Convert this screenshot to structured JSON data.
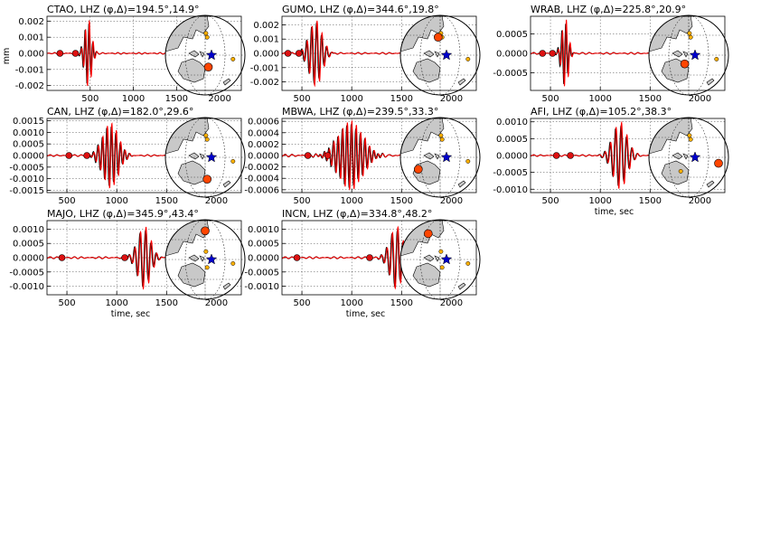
{
  "figure": {
    "ylabel_units": "mm",
    "xlabel": "time, sec",
    "colors": {
      "observed": "#000000",
      "synthetic": "#ff0000",
      "event": "#0000cc",
      "land": "#c8c8c8",
      "marker": "#ff4500",
      "marker_small": "#ffb000"
    }
  },
  "chart_data": [
    {
      "type": "line",
      "station": "CTAO",
      "title": "CTAO, LHZ",
      "geom": "(φ,Δ)=194.5°,14.9°",
      "xlim": [
        0,
        2250
      ],
      "ylim": [
        -0.0023,
        0.0023
      ],
      "xticks": [
        "500",
        "1000",
        "1500",
        "2000"
      ],
      "yticks": [
        "0.002",
        "0.001",
        "0.000",
        "-0.001",
        "-0.002"
      ],
      "wave": {
        "t0": 480,
        "amp": 0.0021,
        "period": 45,
        "width": 55,
        "pre": 4e-05
      },
      "picks": [
        150,
        330
      ],
      "globe": {
        "big": [
          {
            "x": 0.08,
            "y": 0.3
          }
        ],
        "small": [
          {
            "x": 0.02,
            "y": -0.55
          },
          {
            "x": 0.05,
            "y": -0.45
          },
          {
            "x": 0.7,
            "y": 0.1
          }
        ]
      }
    },
    {
      "type": "line",
      "station": "GUMO",
      "title": "GUMO, LHZ",
      "geom": "(φ,Δ)=344.6°,19.8°",
      "xlim": [
        300,
        2250
      ],
      "ylim": [
        -0.0026,
        0.0026
      ],
      "xticks": [
        "500",
        "1000",
        "1500",
        "2000"
      ],
      "yticks": [
        "0.002",
        "0.001",
        "0.000",
        "-0.001",
        "-0.002"
      ],
      "wave": {
        "t0": 640,
        "amp": 0.0023,
        "period": 50,
        "width": 90,
        "pre": 5e-05
      },
      "picks": [
        360,
        470
      ],
      "globe": {
        "big": [
          {
            "x": -0.05,
            "y": -0.45
          }
        ],
        "small": [
          {
            "x": 0.02,
            "y": -0.55
          },
          {
            "x": 0.05,
            "y": -0.45
          },
          {
            "x": 0.7,
            "y": 0.1
          }
        ]
      }
    },
    {
      "type": "line",
      "station": "WRAB",
      "title": "WRAB, LHZ",
      "geom": "(φ,Δ)=225.8°,20.9°",
      "xlim": [
        300,
        2250
      ],
      "ylim": [
        -0.00095,
        0.00095
      ],
      "xticks": [
        "500",
        "1000",
        "1500",
        "2000"
      ],
      "yticks": [
        "0.0005",
        "0.0000",
        "-0.0005"
      ],
      "wave": {
        "t0": 650,
        "amp": 0.0009,
        "period": 40,
        "width": 45,
        "pre": 2e-05
      },
      "picks": [
        420,
        520
      ],
      "globe": {
        "big": [
          {
            "x": -0.1,
            "y": 0.22
          }
        ],
        "small": [
          {
            "x": 0.02,
            "y": -0.55
          },
          {
            "x": 0.05,
            "y": -0.45
          },
          {
            "x": 0.7,
            "y": 0.1
          }
        ]
      }
    },
    {
      "type": "line",
      "station": "CAN",
      "title": "CAN, LHZ",
      "geom": "(φ,Δ)=182.0°,29.6°",
      "xlim": [
        300,
        2250
      ],
      "ylim": [
        -0.0016,
        0.0016
      ],
      "xticks": [
        "500",
        "1000",
        "1500",
        "2000"
      ],
      "yticks": [
        "0.0015",
        "0.0010",
        "0.0005",
        "0.0000",
        "-0.0005",
        "-0.0010",
        "-0.0015"
      ],
      "wave": {
        "t0": 940,
        "amp": 0.0014,
        "period": 45,
        "width": 110,
        "pre": 3e-05
      },
      "picks": [
        520,
        700
      ],
      "globe": {
        "big": [
          {
            "x": 0.05,
            "y": 0.55
          }
        ],
        "small": [
          {
            "x": 0.02,
            "y": -0.55
          },
          {
            "x": 0.05,
            "y": -0.45
          },
          {
            "x": 0.7,
            "y": 0.1
          }
        ]
      }
    },
    {
      "type": "line",
      "station": "MBWA",
      "title": "MBWA, LHZ",
      "geom": "(φ,Δ)=239.5°,33.3°",
      "xlim": [
        300,
        2250
      ],
      "ylim": [
        -0.00065,
        0.00065
      ],
      "xticks": [
        "500",
        "1000",
        "1500",
        "2000"
      ],
      "yticks": [
        "0.0006",
        "0.0004",
        "0.0002",
        "0.0000",
        "-0.0002",
        "-0.0004",
        "-0.0006"
      ],
      "wave": {
        "t0": 990,
        "amp": 0.0006,
        "period": 45,
        "width": 170,
        "pre": 2e-05
      },
      "picks": [
        560,
        760
      ],
      "globe": {
        "big": [
          {
            "x": -0.55,
            "y": 0.3
          }
        ],
        "small": [
          {
            "x": 0.02,
            "y": -0.55
          },
          {
            "x": 0.05,
            "y": -0.45
          },
          {
            "x": 0.7,
            "y": 0.1
          }
        ]
      }
    },
    {
      "type": "line",
      "station": "AFI",
      "title": "AFI, LHZ",
      "geom": "(φ,Δ)=105.2°,38.3°",
      "xlim": [
        300,
        2250
      ],
      "ylim": [
        -0.0011,
        0.0011
      ],
      "xticks": [
        "500",
        "1000",
        "1500",
        "2000"
      ],
      "yticks": [
        "0.0010",
        "0.0005",
        "0.0000",
        "-0.0005",
        "-0.0010"
      ],
      "wave": {
        "t0": 1200,
        "amp": 0.001,
        "period": 55,
        "width": 100,
        "pre": 2e-05
      },
      "picks": [
        560,
        700
      ],
      "globe": {
        "big": [
          {
            "x": 0.75,
            "y": 0.15
          }
        ],
        "small": [
          {
            "x": 0.02,
            "y": -0.55
          },
          {
            "x": 0.05,
            "y": -0.45
          },
          {
            "x": -0.2,
            "y": 0.35
          }
        ]
      }
    },
    {
      "type": "line",
      "station": "MAJO",
      "title": "MAJO, LHZ",
      "geom": "(φ,Δ)=345.9°,43.4°",
      "xlim": [
        300,
        2250
      ],
      "ylim": [
        -0.0013,
        0.0013
      ],
      "xticks": [
        "500",
        "1000",
        "1500",
        "2000"
      ],
      "yticks": [
        "0.0010",
        "0.0005",
        "0.0000",
        "-0.0005",
        "-0.0010"
      ],
      "wave": {
        "t0": 1280,
        "amp": 0.0011,
        "period": 55,
        "width": 90,
        "pre": 3e-05
      },
      "picks": [
        450,
        1080
      ],
      "globe": {
        "big": [
          {
            "x": 0.0,
            "y": -0.72
          }
        ],
        "small": [
          {
            "x": 0.02,
            "y": -0.2
          },
          {
            "x": 0.05,
            "y": 0.2
          },
          {
            "x": 0.7,
            "y": 0.1
          }
        ]
      }
    },
    {
      "type": "line",
      "station": "INCN",
      "title": "INCN, LHZ",
      "geom": "(φ,Δ)=334.8°,48.2°",
      "xlim": [
        300,
        2250
      ],
      "ylim": [
        -0.0013,
        0.0013
      ],
      "xticks": [
        "500",
        "1000",
        "1500",
        "2000"
      ],
      "yticks": [
        "0.0010",
        "0.0005",
        "0.0000",
        "-0.0005",
        "-0.0010"
      ],
      "wave": {
        "t0": 1450,
        "amp": 0.0011,
        "period": 55,
        "width": 90,
        "pre": 3e-05
      },
      "picks": [
        450,
        1180
      ],
      "globe": {
        "big": [
          {
            "x": -0.3,
            "y": -0.65
          }
        ],
        "small": [
          {
            "x": 0.02,
            "y": -0.2
          },
          {
            "x": 0.05,
            "y": 0.2
          },
          {
            "x": 0.7,
            "y": 0.1
          }
        ]
      }
    }
  ]
}
